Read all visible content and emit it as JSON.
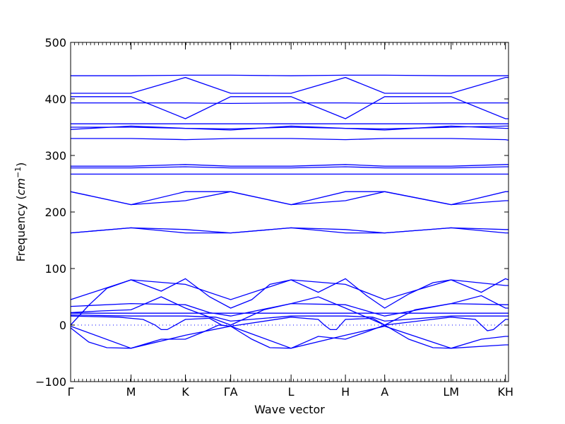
{
  "chart_data": {
    "type": "line",
    "title": "",
    "xlabel": "Wave vector",
    "ylabel_text": "Frequency (",
    "ylabel_unit": "cm",
    "ylabel_exp": "−1",
    "ylabel_close": ")",
    "ylim": [
      -100,
      500
    ],
    "yticks": [
      -100,
      0,
      100,
      200,
      300,
      400,
      500
    ],
    "grid": false,
    "legend": "none",
    "color": "#0000ff",
    "zero_line_color": "#0000ff",
    "xticks": [
      {
        "label": "Γ",
        "x": 0
      },
      {
        "label": "M",
        "x": 1.0
      },
      {
        "label": "K",
        "x": 1.9
      },
      {
        "label": "ΓA",
        "x": 2.65
      },
      {
        "label": "L",
        "x": 3.65
      },
      {
        "label": "H",
        "x": 4.55
      },
      {
        "label": "A",
        "x": 5.2
      },
      {
        "label": "LM",
        "x": 6.3
      },
      {
        "label": "KH",
        "x": 7.2
      }
    ],
    "xrange": [
      0,
      7.25
    ],
    "series": [
      {
        "x": [
          0,
          1.0,
          1.9,
          2.65,
          3.65,
          4.55,
          5.2,
          6.3,
          7.2,
          7.25
        ],
        "y": [
          441,
          441,
          442,
          442,
          441,
          442,
          442,
          441,
          441,
          441
        ]
      },
      {
        "x": [
          0,
          1.0,
          1.9,
          2.65,
          3.65,
          4.55,
          5.2,
          6.3,
          7.2,
          7.25
        ],
        "y": [
          410,
          410,
          438,
          410,
          410,
          438,
          410,
          410,
          438,
          438
        ]
      },
      {
        "x": [
          0,
          1.0,
          1.9,
          2.65,
          3.65,
          4.55,
          5.2,
          6.3,
          7.2,
          7.25
        ],
        "y": [
          404,
          404,
          365,
          404,
          404,
          365,
          404,
          404,
          365,
          365
        ]
      },
      {
        "x": [
          0,
          1.0,
          1.9,
          2.65,
          3.65,
          4.55,
          5.2,
          6.3,
          7.2,
          7.25
        ],
        "y": [
          393,
          393,
          393,
          392,
          393,
          393,
          392,
          393,
          393,
          393
        ]
      },
      {
        "x": [
          0,
          1.0,
          1.9,
          2.65,
          3.65,
          4.55,
          5.2,
          6.3,
          7.2,
          7.25
        ],
        "y": [
          356,
          356,
          356,
          356,
          356,
          356,
          356,
          356,
          356,
          356
        ]
      },
      {
        "x": [
          0,
          1.0,
          1.9,
          2.65,
          3.65,
          4.55,
          5.2,
          6.3,
          7.2,
          7.25
        ],
        "y": [
          346,
          352,
          348,
          345,
          352,
          348,
          345,
          352,
          348,
          348
        ]
      },
      {
        "x": [
          0,
          1.0,
          1.9,
          2.65,
          3.65,
          4.55,
          5.2,
          6.3,
          7.2,
          7.25
        ],
        "y": [
          350,
          350,
          348,
          347,
          350,
          348,
          347,
          350,
          352,
          352
        ]
      },
      {
        "x": [
          0,
          1.0,
          1.9,
          2.65,
          3.65,
          4.55,
          5.2,
          6.3,
          7.2,
          7.25
        ],
        "y": [
          330,
          330,
          328,
          330,
          330,
          328,
          330,
          330,
          328,
          327
        ]
      },
      {
        "x": [
          0,
          1.0,
          1.9,
          2.65,
          3.65,
          4.55,
          5.2,
          6.3,
          7.2,
          7.25
        ],
        "y": [
          281,
          281,
          284,
          281,
          281,
          284,
          281,
          281,
          284,
          284
        ]
      },
      {
        "x": [
          0,
          1.0,
          1.9,
          2.65,
          3.65,
          4.55,
          5.2,
          6.3,
          7.2,
          7.25
        ],
        "y": [
          278,
          278,
          280,
          278,
          278,
          280,
          278,
          278,
          280,
          280
        ]
      },
      {
        "x": [
          0,
          1.0,
          1.9,
          2.65,
          3.65,
          4.55,
          5.2,
          6.3,
          7.2,
          7.25
        ],
        "y": [
          267,
          267,
          267,
          267,
          267,
          267,
          267,
          267,
          267,
          267
        ]
      },
      {
        "x": [
          0,
          1.0,
          1.9,
          2.65,
          3.65,
          4.55,
          5.2,
          6.3,
          7.2,
          7.25
        ],
        "y": [
          236,
          213,
          236,
          236,
          213,
          236,
          236,
          213,
          236,
          236
        ]
      },
      {
        "x": [
          0,
          1.0,
          1.9,
          2.65,
          3.65,
          4.55,
          5.2,
          6.3,
          7.2,
          7.25
        ],
        "y": [
          236,
          213,
          220,
          236,
          213,
          220,
          236,
          213,
          220,
          220
        ]
      },
      {
        "x": [
          0,
          1.0,
          1.9,
          2.65,
          3.65,
          4.55,
          5.2,
          6.3,
          7.2,
          7.25
        ],
        "y": [
          163,
          172,
          169,
          163,
          172,
          169,
          163,
          172,
          169,
          169
        ]
      },
      {
        "x": [
          0,
          1.0,
          1.9,
          2.65,
          3.65,
          4.55,
          5.2,
          6.3,
          7.2,
          7.25
        ],
        "y": [
          163,
          172,
          163,
          163,
          172,
          163,
          163,
          172,
          163,
          163
        ]
      },
      {
        "x": [
          0,
          0.3,
          0.6,
          1.0,
          1.5,
          1.9,
          2.3,
          2.65,
          3.0,
          3.3,
          3.65,
          4.1,
          4.55,
          4.9,
          5.2,
          5.6,
          6.0,
          6.3,
          6.8,
          7.2,
          7.25
        ],
        "y": [
          0,
          35,
          65,
          80,
          60,
          82,
          50,
          30,
          45,
          72,
          80,
          58,
          82,
          52,
          30,
          55,
          75,
          80,
          58,
          82,
          80
        ]
      },
      {
        "x": [
          0,
          1.0,
          1.9,
          2.65,
          3.65,
          4.55,
          5.2,
          6.3,
          7.2,
          7.25
        ],
        "y": [
          45,
          80,
          72,
          45,
          80,
          72,
          45,
          80,
          70,
          70
        ]
      },
      {
        "x": [
          0,
          0.5,
          1.0,
          1.5,
          1.9,
          2.65,
          3.2,
          3.65,
          4.1,
          4.55,
          5.2,
          5.7,
          6.3,
          6.8,
          7.2,
          7.25
        ],
        "y": [
          22,
          25,
          27,
          50,
          30,
          0,
          27,
          38,
          50,
          30,
          0,
          27,
          38,
          52,
          30,
          30
        ]
      },
      {
        "x": [
          0,
          1.0,
          1.9,
          2.3,
          2.65,
          3.65,
          4.55,
          5.0,
          5.2,
          6.3,
          7.2,
          7.25
        ],
        "y": [
          33,
          38,
          36,
          22,
          16,
          38,
          36,
          22,
          16,
          38,
          36,
          36
        ]
      },
      {
        "x": [
          0,
          1.0,
          1.9,
          2.65,
          3.65,
          4.55,
          5.2,
          6.3,
          7.2,
          7.25
        ],
        "y": [
          21,
          21,
          21,
          21,
          21,
          21,
          21,
          21,
          21,
          21
        ]
      },
      {
        "x": [
          0,
          1.0,
          1.9,
          2.4,
          2.65,
          3.65,
          4.55,
          5.0,
          5.2,
          6.3,
          7.2,
          7.25
        ],
        "y": [
          18,
          16,
          16,
          14,
          7,
          16,
          16,
          14,
          7,
          16,
          16,
          16
        ]
      },
      {
        "x": [
          0,
          0.8,
          1.2,
          1.4,
          1.5,
          1.6,
          1.9,
          2.3,
          2.5,
          2.65,
          3.65,
          4.1,
          4.2,
          4.3,
          4.4,
          4.55,
          5.0,
          5.2,
          6.3,
          6.7,
          6.8,
          6.9,
          7.0,
          7.2,
          7.25
        ],
        "y": [
          16,
          14,
          10,
          0,
          -8,
          -8,
          10,
          12,
          0,
          -2,
          14,
          10,
          0,
          -8,
          -8,
          10,
          12,
          0,
          14,
          10,
          0,
          -10,
          -8,
          10,
          10
        ]
      },
      {
        "x": [
          0,
          0.3,
          0.6,
          1.0,
          1.5,
          1.9,
          2.2,
          2.45,
          2.65,
          3.0,
          3.3,
          3.65,
          4.1,
          4.55,
          4.9,
          5.2,
          5.6,
          6.0,
          6.3,
          6.8,
          7.2,
          7.25
        ],
        "y": [
          -5,
          -30,
          -40,
          -41,
          -25,
          -25,
          -12,
          0,
          -2,
          -25,
          -40,
          -41,
          -20,
          -25,
          -12,
          0,
          -25,
          -40,
          -41,
          -25,
          -20,
          -20
        ]
      },
      {
        "x": [
          0,
          1.0,
          1.9,
          2.65,
          3.65,
          4.55,
          5.2,
          6.3,
          7.2,
          7.25
        ],
        "y": [
          -2,
          -41,
          -18,
          -2,
          -41,
          -18,
          -2,
          -41,
          -35,
          -35
        ]
      }
    ]
  }
}
